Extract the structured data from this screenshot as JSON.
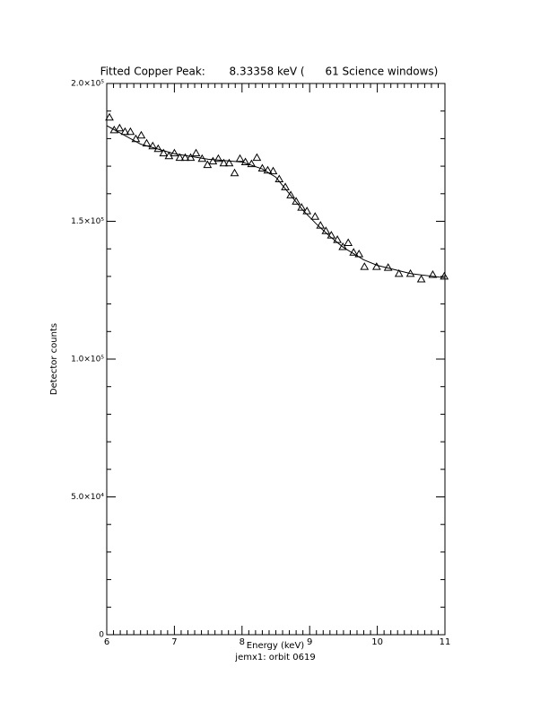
{
  "chart_data": {
    "type": "scatter",
    "title": "Fitted Copper Peak:       8.33358 keV (      61 Science windows)",
    "x_label": "Energy (keV)",
    "subtitle": "jemx1: orbit 0619",
    "y_label": "Detector counts",
    "xlim": [
      6,
      11
    ],
    "xticks": [
      6,
      7,
      8,
      9,
      10,
      11
    ],
    "ylim": [
      0,
      200000
    ],
    "yticks": [
      0,
      {
        "value": 50000,
        "label": "5.0×10⁴"
      },
      {
        "value": 100000,
        "label": "1.0×10⁵"
      },
      {
        "value": 150000,
        "label": "1.5×10⁵"
      },
      {
        "value": 200000,
        "label": "2.0×10⁵"
      }
    ],
    "series": [
      {
        "type": "scatter",
        "marker": "triangle",
        "color": "#000000",
        "x": [
          6.04,
          6.11,
          6.19,
          6.27,
          6.35,
          6.43,
          6.51,
          6.59,
          6.68,
          6.76,
          6.84,
          6.92,
          7.0,
          7.08,
          7.16,
          7.24,
          7.32,
          7.41,
          7.49,
          7.57,
          7.65,
          7.73,
          7.81,
          7.89,
          7.97,
          8.05,
          8.14,
          8.22,
          8.3,
          8.38,
          8.46,
          8.55,
          8.64,
          8.72,
          8.8,
          8.88,
          8.96,
          9.08,
          9.16,
          9.24,
          9.32,
          9.41,
          9.49,
          9.57,
          9.65,
          9.73,
          9.81,
          9.99,
          10.16,
          10.32,
          10.49,
          10.65,
          10.82,
          10.99
        ],
        "values": [
          187700,
          183100,
          183800,
          182500,
          182500,
          179900,
          181200,
          178300,
          177300,
          176300,
          174700,
          173700,
          174700,
          173100,
          173100,
          173100,
          174700,
          172700,
          170500,
          171800,
          172700,
          171100,
          171100,
          167500,
          172700,
          171500,
          170800,
          173100,
          169200,
          168500,
          168200,
          165300,
          162400,
          159500,
          157200,
          155000,
          153700,
          151700,
          148500,
          146500,
          144900,
          143300,
          140700,
          142200,
          138700,
          138100,
          133500,
          133500,
          133200,
          131000,
          131000,
          129000,
          130600,
          130000
        ]
      },
      {
        "type": "line",
        "color": "#000000",
        "x": [
          6.0,
          6.5,
          7.0,
          7.5,
          8.0,
          8.3,
          8.5,
          8.7,
          8.9,
          9.1,
          9.3,
          9.5,
          9.8,
          10.0,
          10.5,
          11.0
        ],
        "values": [
          184700,
          178000,
          174500,
          172500,
          171500,
          169000,
          166000,
          160000,
          154000,
          149000,
          144500,
          140500,
          136000,
          134000,
          131000,
          129500
        ]
      }
    ]
  }
}
